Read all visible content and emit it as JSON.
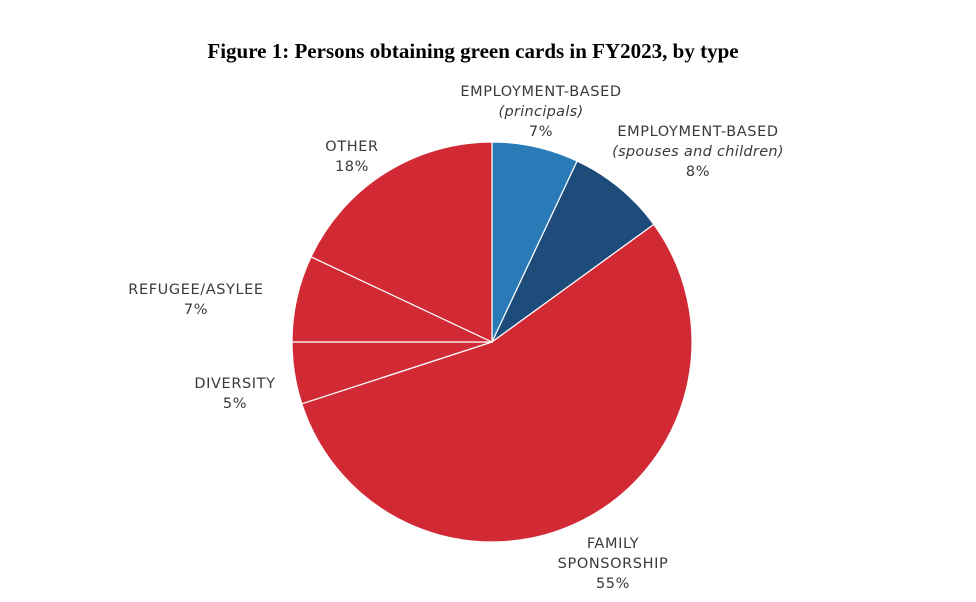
{
  "chart_data": {
    "type": "pie",
    "title": "Figure 1: Persons obtaining green cards in FY2023, by type",
    "start_angle_deg": 0,
    "direction": "clockwise",
    "legend": "none",
    "slices": [
      {
        "label_lines": [
          "EMPLOYMENT-BASED",
          "(principals)"
        ],
        "percent_label": "7%",
        "value": 7,
        "color": "#2a7ab8"
      },
      {
        "label_lines": [
          "EMPLOYMENT-BASED",
          "(spouses and children)"
        ],
        "percent_label": "8%",
        "value": 8,
        "color": "#1d4b7a"
      },
      {
        "label_lines": [
          "FAMILY",
          "SPONSORSHIP"
        ],
        "percent_label": "55%",
        "value": 55,
        "color": "#d22a34"
      },
      {
        "label_lines": [
          "DIVERSITY"
        ],
        "percent_label": "5%",
        "value": 5,
        "color": "#d22a34"
      },
      {
        "label_lines": [
          "REFUGEE/ASYLEE"
        ],
        "percent_label": "7%",
        "value": 7,
        "color": "#d22a34"
      },
      {
        "label_lines": [
          "OTHER"
        ],
        "percent_label": "18%",
        "value": 18,
        "color": "#d22a34"
      }
    ]
  }
}
